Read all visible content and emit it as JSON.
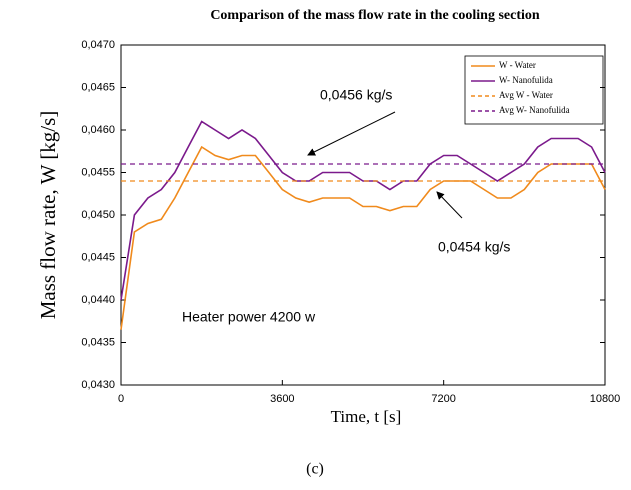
{
  "chart_data": {
    "type": "line",
    "title": "Comparison of the mass flow rate in the cooling section",
    "x_label": "Time, t [s]",
    "y_label": "Mass flow rate, W [kg/s]",
    "caption": "(c)",
    "annotations": [
      "0,0456 kg/s",
      "0,0454 kg/s",
      "Heater power 4200 w"
    ],
    "x": [
      0,
      300,
      600,
      900,
      1200,
      1500,
      1800,
      2100,
      2400,
      2700,
      3000,
      3300,
      3600,
      3900,
      4200,
      4500,
      4800,
      5100,
      5400,
      5700,
      6000,
      6300,
      6600,
      6900,
      7200,
      7500,
      7800,
      8100,
      8400,
      8700,
      9000,
      9300,
      9600,
      9900,
      10200,
      10500,
      10800
    ],
    "series": [
      {
        "name": "W - Water",
        "color": "#f08a1c",
        "dashed": false,
        "values": [
          0.04365,
          0.0448,
          0.0449,
          0.04495,
          0.0452,
          0.0455,
          0.0458,
          0.0457,
          0.04565,
          0.0457,
          0.0457,
          0.0455,
          0.0453,
          0.0452,
          0.04515,
          0.0452,
          0.0452,
          0.0452,
          0.0451,
          0.0451,
          0.04505,
          0.0451,
          0.0451,
          0.0453,
          0.0454,
          0.0454,
          0.0454,
          0.0453,
          0.0452,
          0.0452,
          0.0453,
          0.0455,
          0.0456,
          0.0456,
          0.0456,
          0.0456,
          0.0453
        ]
      },
      {
        "name": "W- Nanofulida",
        "color": "#7b1a8c",
        "dashed": false,
        "values": [
          0.044,
          0.045,
          0.0452,
          0.0453,
          0.0455,
          0.0458,
          0.0461,
          0.046,
          0.0459,
          0.046,
          0.0459,
          0.0457,
          0.0455,
          0.0454,
          0.0454,
          0.0455,
          0.0455,
          0.0455,
          0.0454,
          0.0454,
          0.0453,
          0.0454,
          0.0454,
          0.0456,
          0.0457,
          0.0457,
          0.0456,
          0.0455,
          0.0454,
          0.0455,
          0.0456,
          0.0458,
          0.0459,
          0.0459,
          0.0459,
          0.0458,
          0.0455
        ]
      },
      {
        "name": "Avg W - Water",
        "color": "#f08a1c",
        "dashed": true,
        "values": [
          0.0454,
          0.0454,
          0.0454,
          0.0454,
          0.0454,
          0.0454,
          0.0454,
          0.0454,
          0.0454,
          0.0454,
          0.0454,
          0.0454,
          0.0454,
          0.0454,
          0.0454,
          0.0454,
          0.0454,
          0.0454,
          0.0454,
          0.0454,
          0.0454,
          0.0454,
          0.0454,
          0.0454,
          0.0454,
          0.0454,
          0.0454,
          0.0454,
          0.0454,
          0.0454,
          0.0454,
          0.0454,
          0.0454,
          0.0454,
          0.0454,
          0.0454,
          0.0454
        ]
      },
      {
        "name": "Avg W- Nanofulida",
        "color": "#7b1a8c",
        "dashed": true,
        "values": [
          0.0456,
          0.0456,
          0.0456,
          0.0456,
          0.0456,
          0.0456,
          0.0456,
          0.0456,
          0.0456,
          0.0456,
          0.0456,
          0.0456,
          0.0456,
          0.0456,
          0.0456,
          0.0456,
          0.0456,
          0.0456,
          0.0456,
          0.0456,
          0.0456,
          0.0456,
          0.0456,
          0.0456,
          0.0456,
          0.0456,
          0.0456,
          0.0456,
          0.0456,
          0.0456,
          0.0456,
          0.0456,
          0.0456,
          0.0456,
          0.0456,
          0.0456,
          0.0456
        ]
      }
    ],
    "xlim": [
      0,
      10800
    ],
    "xticks": [
      0,
      3600,
      7200,
      10800
    ],
    "ylim": [
      0.043,
      0.047
    ],
    "yticks": [
      {
        "value": 0.043,
        "label": "0,0430"
      },
      {
        "value": 0.0435,
        "label": "0,0435"
      },
      {
        "value": 0.044,
        "label": "0,0440"
      },
      {
        "value": 0.0445,
        "label": "0,0445"
      },
      {
        "value": 0.045,
        "label": "0,0450"
      },
      {
        "value": 0.0455,
        "label": "0,0455"
      },
      {
        "value": 0.046,
        "label": "0,0460"
      },
      {
        "value": 0.0465,
        "label": "0,0465"
      },
      {
        "value": 0.047,
        "label": "0,0470"
      }
    ],
    "legend": "upper right",
    "grid": false
  }
}
